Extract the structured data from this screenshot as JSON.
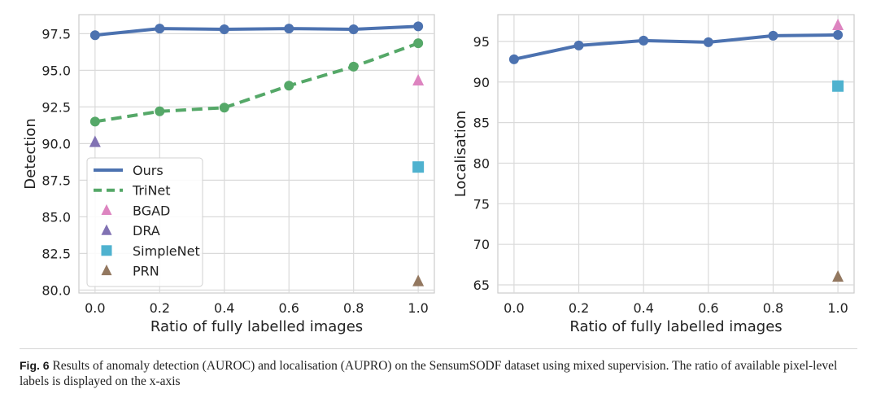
{
  "colors": {
    "ours": "#4c72b0",
    "trinet": "#55a868",
    "bgad": "#dd84c0",
    "dra": "#8172b3",
    "simplenet": "#4fb2cf",
    "prn": "#937860",
    "grid": "#dadada",
    "axis": "#cccccc"
  },
  "caption": {
    "label": "Fig. 6",
    "text": "Results of anomaly detection (AUROC) and localisation (AUPRO) on the SensumSODF dataset using mixed supervision. The ratio of available pixel-level labels is displayed on the x-axis"
  },
  "chart_data": [
    {
      "type": "line",
      "xlabel": "Ratio of fully labelled images",
      "ylabel": "Detection",
      "xlim": [
        -0.05,
        1.05
      ],
      "ylim": [
        79.8,
        98.8
      ],
      "xticks": [
        0.0,
        0.2,
        0.4,
        0.6,
        0.8,
        1.0
      ],
      "xtick_labels": [
        "0.0",
        "0.2",
        "0.4",
        "0.6",
        "0.8",
        "1.0"
      ],
      "yticks": [
        80.0,
        82.5,
        85.0,
        87.5,
        90.0,
        92.5,
        95.0,
        97.5
      ],
      "ytick_labels": [
        "80.0",
        "82.5",
        "85.0",
        "87.5",
        "90.0",
        "92.5",
        "95.0",
        "97.5"
      ],
      "legend": {
        "position": "lower-left",
        "entries": [
          "Ours",
          "TriNet",
          "BGAD",
          "DRA",
          "SimpleNet",
          "PRN"
        ]
      },
      "series": [
        {
          "name": "Ours",
          "style": "solid",
          "marker": "circle",
          "color_key": "ours",
          "x": [
            0.0,
            0.2,
            0.4,
            0.6,
            0.8,
            1.0
          ],
          "y": [
            97.4,
            97.85,
            97.8,
            97.85,
            97.8,
            98.0
          ]
        },
        {
          "name": "TriNet",
          "style": "dashed",
          "marker": "circle",
          "color_key": "trinet",
          "x": [
            0.0,
            0.2,
            0.4,
            0.6,
            0.8,
            1.0
          ],
          "y": [
            91.5,
            92.2,
            92.45,
            93.95,
            95.25,
            96.85
          ]
        }
      ],
      "points": [
        {
          "name": "BGAD",
          "marker": "triangle",
          "color_key": "bgad",
          "x": 1.0,
          "y": 94.3
        },
        {
          "name": "DRA",
          "marker": "triangle",
          "color_key": "dra",
          "x": 0.0,
          "y": 90.1
        },
        {
          "name": "SimpleNet",
          "marker": "square",
          "color_key": "simplenet",
          "x": 1.0,
          "y": 88.4
        },
        {
          "name": "PRN",
          "marker": "triangle",
          "color_key": "prn",
          "x": 1.0,
          "y": 80.6
        }
      ]
    },
    {
      "type": "line",
      "xlabel": "Ratio of fully labelled images",
      "ylabel": "Localisation",
      "xlim": [
        -0.05,
        1.05
      ],
      "ylim": [
        64.0,
        98.3
      ],
      "xticks": [
        0.0,
        0.2,
        0.4,
        0.6,
        0.8,
        1.0
      ],
      "xtick_labels": [
        "0.0",
        "0.2",
        "0.4",
        "0.6",
        "0.8",
        "1.0"
      ],
      "yticks": [
        65,
        70,
        75,
        80,
        85,
        90,
        95
      ],
      "ytick_labels": [
        "65",
        "70",
        "75",
        "80",
        "85",
        "90",
        "95"
      ],
      "series": [
        {
          "name": "Ours",
          "style": "solid",
          "marker": "circle",
          "color_key": "ours",
          "x": [
            0.0,
            0.2,
            0.4,
            0.6,
            0.8,
            1.0
          ],
          "y": [
            92.8,
            94.5,
            95.1,
            94.9,
            95.7,
            95.8
          ]
        }
      ],
      "points": [
        {
          "name": "BGAD",
          "marker": "triangle",
          "color_key": "bgad",
          "x": 1.0,
          "y": 97.0
        },
        {
          "name": "SimpleNet",
          "marker": "square",
          "color_key": "simplenet",
          "x": 1.0,
          "y": 89.5
        },
        {
          "name": "PRN",
          "marker": "triangle",
          "color_key": "prn",
          "x": 1.0,
          "y": 66.0
        }
      ]
    }
  ]
}
